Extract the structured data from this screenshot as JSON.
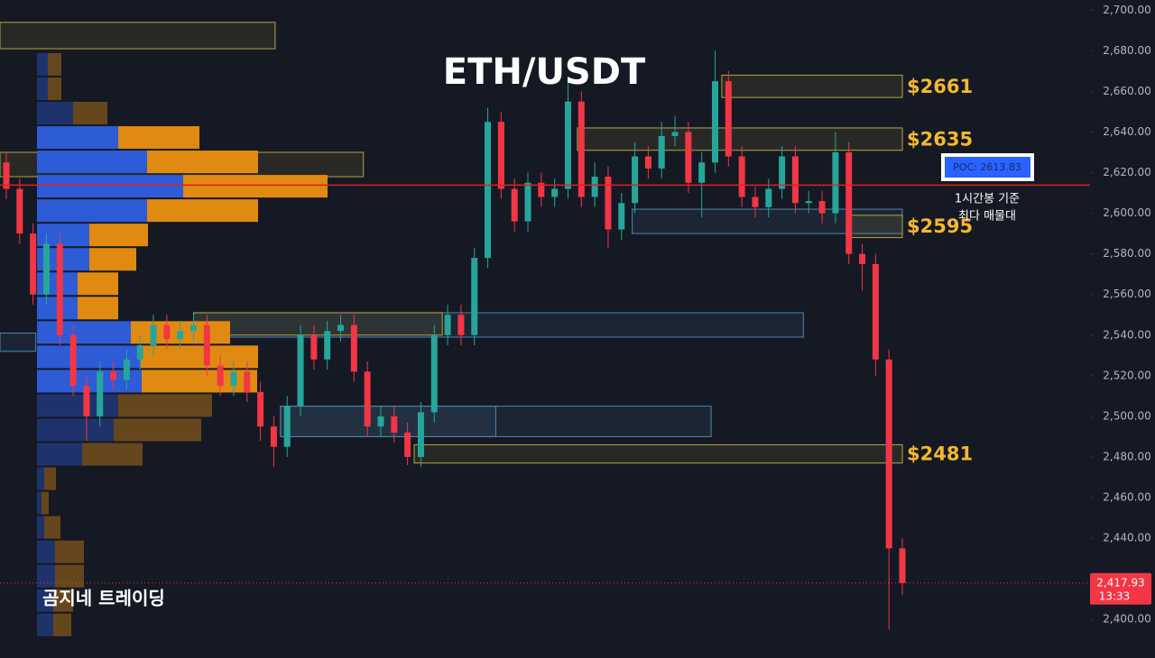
{
  "chart_data": {
    "type": "candlestick",
    "title": "ETH/USDT",
    "watermark": "곰지네 트레이딩",
    "up_color": "#26a69a",
    "down_color": "#f23645",
    "ylim": [
      2381,
      2705
    ],
    "yticks": [
      {
        "value": 2700,
        "label": "2,700.00"
      },
      {
        "value": 2680,
        "label": "2,680.00"
      },
      {
        "value": 2660,
        "label": "2,660.00"
      },
      {
        "value": 2640,
        "label": "2,640.00"
      },
      {
        "value": 2620,
        "label": "2,620.00"
      },
      {
        "value": 2600,
        "label": "2,600.00"
      },
      {
        "value": 2580,
        "label": "2,580.00"
      },
      {
        "value": 2560,
        "label": "2,560.00"
      },
      {
        "value": 2540,
        "label": "2,540.00"
      },
      {
        "value": 2520,
        "label": "2,520.00"
      },
      {
        "value": 2500,
        "label": "2,500.00"
      },
      {
        "value": 2480,
        "label": "2,480.00"
      },
      {
        "value": 2460,
        "label": "2,460.00"
      },
      {
        "value": 2440,
        "label": "2,440.00"
      },
      {
        "value": 2420,
        "label": "2,420.00"
      },
      {
        "value": 2400,
        "label": "2,400.00"
      }
    ],
    "ohlc": [
      [
        2625,
        2630,
        2607,
        2612
      ],
      [
        2612,
        2617,
        2585,
        2590
      ],
      [
        2590,
        2595,
        2555,
        2560
      ],
      [
        2560,
        2590,
        2555,
        2585
      ],
      [
        2585,
        2590,
        2535,
        2540
      ],
      [
        2540,
        2545,
        2510,
        2515
      ],
      [
        2515,
        2520,
        2488,
        2500
      ],
      [
        2500,
        2527,
        2495,
        2522
      ],
      [
        2522,
        2527,
        2513,
        2518
      ],
      [
        2518,
        2533,
        2513,
        2528
      ],
      [
        2528,
        2540,
        2523,
        2535
      ],
      [
        2535,
        2550,
        2530,
        2545
      ],
      [
        2545,
        2550,
        2533,
        2538
      ],
      [
        2538,
        2547,
        2533,
        2542
      ],
      [
        2542,
        2550,
        2537,
        2545
      ],
      [
        2545,
        2550,
        2520,
        2525
      ],
      [
        2525,
        2530,
        2510,
        2515
      ],
      [
        2515,
        2527,
        2510,
        2522
      ],
      [
        2522,
        2527,
        2507,
        2512
      ],
      [
        2512,
        2517,
        2488,
        2495
      ],
      [
        2495,
        2500,
        2475,
        2485
      ],
      [
        2485,
        2510,
        2480,
        2505
      ],
      [
        2505,
        2545,
        2500,
        2540
      ],
      [
        2540,
        2545,
        2523,
        2528
      ],
      [
        2528,
        2547,
        2523,
        2542
      ],
      [
        2542,
        2550,
        2537,
        2545
      ],
      [
        2545,
        2550,
        2517,
        2522
      ],
      [
        2522,
        2527,
        2490,
        2495
      ],
      [
        2495,
        2505,
        2490,
        2500
      ],
      [
        2500,
        2505,
        2487,
        2492
      ],
      [
        2492,
        2497,
        2476,
        2480
      ],
      [
        2480,
        2507,
        2475,
        2502
      ],
      [
        2502,
        2545,
        2497,
        2540
      ],
      [
        2540,
        2555,
        2535,
        2550
      ],
      [
        2550,
        2555,
        2535,
        2540
      ],
      [
        2540,
        2583,
        2535,
        2578
      ],
      [
        2578,
        2652,
        2573,
        2645
      ],
      [
        2645,
        2650,
        2607,
        2612
      ],
      [
        2612,
        2617,
        2591,
        2596
      ],
      [
        2596,
        2620,
        2591,
        2615
      ],
      [
        2615,
        2620,
        2603,
        2608
      ],
      [
        2608,
        2617,
        2603,
        2612
      ],
      [
        2612,
        2665,
        2607,
        2655
      ],
      [
        2655,
        2660,
        2603,
        2608
      ],
      [
        2608,
        2625,
        2603,
        2618
      ],
      [
        2618,
        2623,
        2583,
        2592
      ],
      [
        2592,
        2610,
        2587,
        2605
      ],
      [
        2605,
        2635,
        2600,
        2628
      ],
      [
        2628,
        2633,
        2617,
        2622
      ],
      [
        2622,
        2645,
        2617,
        2638
      ],
      [
        2638,
        2648,
        2633,
        2640
      ],
      [
        2640,
        2645,
        2610,
        2615
      ],
      [
        2615,
        2630,
        2598,
        2625
      ],
      [
        2625,
        2680,
        2620,
        2665
      ],
      [
        2665,
        2670,
        2623,
        2628
      ],
      [
        2628,
        2633,
        2603,
        2608
      ],
      [
        2608,
        2613,
        2598,
        2603
      ],
      [
        2603,
        2617,
        2598,
        2612
      ],
      [
        2612,
        2633,
        2607,
        2628
      ],
      [
        2628,
        2633,
        2600,
        2605
      ],
      [
        2605,
        2611,
        2600,
        2606
      ],
      [
        2606,
        2611,
        2595,
        2600
      ],
      [
        2600,
        2640,
        2595,
        2630
      ],
      [
        2630,
        2635,
        2575,
        2580
      ],
      [
        2580,
        2585,
        2562,
        2575
      ],
      [
        2575,
        2580,
        2520,
        2528
      ],
      [
        2528,
        2533,
        2395,
        2435
      ],
      [
        2435,
        2440,
        2412,
        2417.93
      ]
    ],
    "zones": [
      {
        "low": 2681,
        "high": 2694,
        "start": -0.5,
        "end": 20.1,
        "color": "#b5a642"
      },
      {
        "low": 2618,
        "high": 2630,
        "start": -0.5,
        "end": 26.7,
        "color": "#b5a642"
      },
      {
        "low": 2539,
        "high": 2551,
        "start": 14,
        "end": 59.6,
        "color": "#4f86b0"
      },
      {
        "low": 2540,
        "high": 2551,
        "start": 14,
        "end": 32.6,
        "color": "#b5a642"
      },
      {
        "low": 2490,
        "high": 2505,
        "start": 20.5,
        "end": 52.7,
        "color": "#4f86b0"
      },
      {
        "low": 2490,
        "high": 2505,
        "start": 20.5,
        "end": 36.6,
        "color": "#4f86b0"
      },
      {
        "low": 2590,
        "high": 2602,
        "start": 46.8,
        "end": 67,
        "color": "#4f86b0"
      },
      {
        "low": 2532,
        "high": 2541,
        "start": -0.5,
        "end": 2.2,
        "color": "#4f86b0"
      },
      {
        "label": "$2661",
        "low": 2657,
        "high": 2668,
        "start": 53.5,
        "end": 67,
        "color": "#b5a642"
      },
      {
        "label": "$2635",
        "low": 2631,
        "high": 2642,
        "start": 42.7,
        "end": 67,
        "color": "#b5a642"
      },
      {
        "label": "$2595",
        "low": 2588,
        "high": 2599,
        "start": 63,
        "end": 67,
        "color": "#b5a642"
      },
      {
        "label": "$2481",
        "low": 2477,
        "high": 2486,
        "start": 30.5,
        "end": 67,
        "color": "#b5a642"
      }
    ],
    "volume_profile": {
      "prices": [
        2673.3,
        2661.3,
        2649.3,
        2637.3,
        2625.3,
        2613.3,
        2601.3,
        2589.3,
        2577.3,
        2565.3,
        2553.3,
        2541.3,
        2529.3,
        2517.3,
        2505.3,
        2493.3,
        2481.3,
        2469.3,
        2457.3,
        2445.3,
        2433.3,
        2421.3,
        2409.3,
        2397.3
      ],
      "buy": [
        12,
        12,
        40,
        90,
        122,
        162,
        122,
        58,
        58,
        45,
        45,
        104,
        115,
        116,
        90,
        85,
        50,
        8,
        5,
        8,
        20,
        20,
        18,
        18
      ],
      "sell": [
        15,
        15,
        38,
        90,
        123,
        160,
        123,
        65,
        52,
        45,
        45,
        110,
        130,
        128,
        104,
        97,
        67,
        13,
        8,
        18,
        32,
        32,
        22,
        20
      ],
      "buy_color": "#2e5bd6",
      "sell_color": "#e08a12",
      "value_area": [
        2511,
        2643
      ]
    },
    "poc": {
      "value": 2613.83,
      "label": "POC: 2613.83"
    },
    "annotation": [
      "1시간봉 기준",
      "최다 매물대"
    ],
    "last_price": {
      "value": 2417.93,
      "label": "2,417.93"
    },
    "countdown": "13:33"
  }
}
